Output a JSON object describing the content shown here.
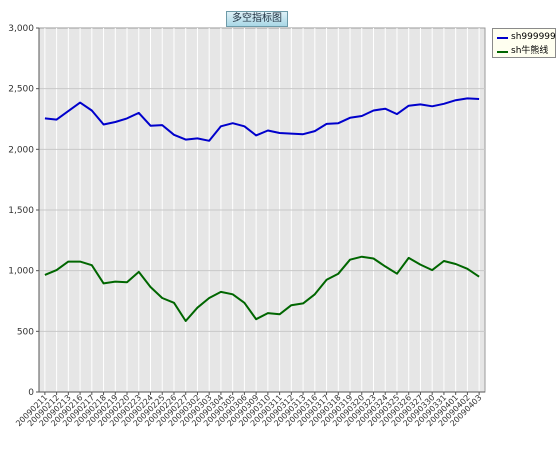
{
  "chart_data": {
    "type": "line",
    "title": "多空指标图",
    "ylim": [
      0,
      3000
    ],
    "yticks": [
      0,
      500,
      1000,
      1500,
      2000,
      2500,
      3000
    ],
    "ytick_labels": [
      "0",
      "500",
      "1,000",
      "1,500",
      "2,000",
      "2,500",
      "3,000"
    ],
    "grid": true,
    "legend_position": "top-right",
    "categories": [
      "20090211",
      "20090212",
      "20090213",
      "20090216",
      "20090217",
      "20090218",
      "20090219",
      "20090220",
      "20090223",
      "20090224",
      "20090225",
      "20090226",
      "20090227",
      "20090302",
      "20090303",
      "20090304",
      "20090305",
      "20090306",
      "20090309",
      "20090310",
      "20090311",
      "20090312",
      "20090313",
      "20090316",
      "20090317",
      "20090318",
      "20090319",
      "20090320",
      "20090323",
      "20090324",
      "20090325",
      "20090326",
      "20090327",
      "20090330",
      "20090331",
      "20090401",
      "20090402",
      "20090403"
    ],
    "series": [
      {
        "name": "sh999999",
        "color": "#0000cc",
        "values": [
          2255,
          2245,
          2315,
          2385,
          2320,
          2205,
          2225,
          2255,
          2300,
          2195,
          2200,
          2120,
          2080,
          2090,
          2070,
          2190,
          2215,
          2190,
          2115,
          2155,
          2135,
          2130,
          2125,
          2150,
          2210,
          2215,
          2260,
          2275,
          2320,
          2335,
          2290,
          2360,
          2370,
          2355,
          2375,
          2405,
          2420,
          2415
        ]
      },
      {
        "name": "sh牛熊线",
        "color": "#006600",
        "values": [
          965,
          1005,
          1075,
          1075,
          1045,
          895,
          910,
          905,
          990,
          865,
          775,
          735,
          585,
          695,
          775,
          825,
          805,
          735,
          600,
          650,
          640,
          715,
          730,
          805,
          925,
          975,
          1090,
          1115,
          1100,
          1035,
          975,
          1105,
          1050,
          1005,
          1080,
          1055,
          1015,
          950
        ]
      }
    ]
  }
}
